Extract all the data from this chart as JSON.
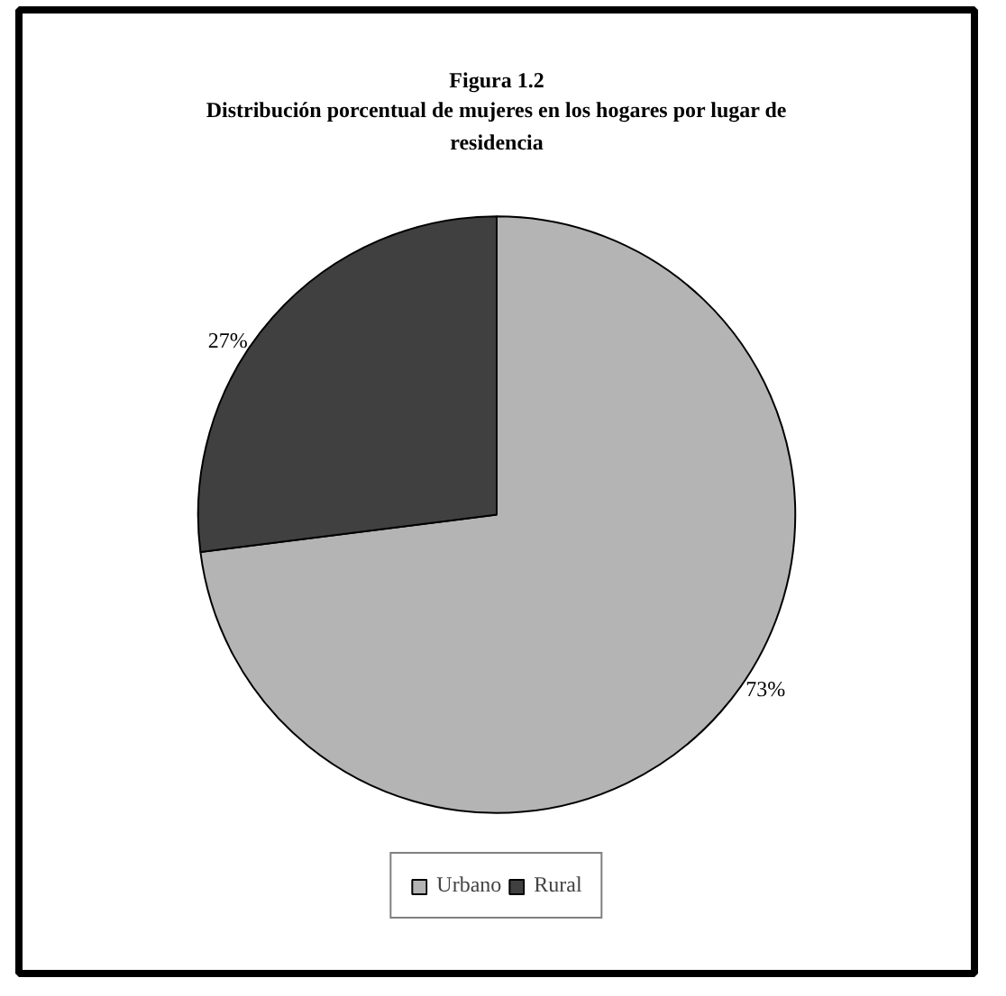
{
  "chart_data": {
    "type": "pie",
    "title": "Figura 1.2",
    "subtitle": "Distribución porcentual de mujeres en los hogares por lugar de residencia",
    "categories": [
      "Urbano",
      "Rural"
    ],
    "values": [
      73,
      27
    ],
    "colors": [
      "#b4b4b4",
      "#404040"
    ],
    "value_labels": [
      "73%",
      "27%"
    ],
    "legend": "bottom"
  }
}
